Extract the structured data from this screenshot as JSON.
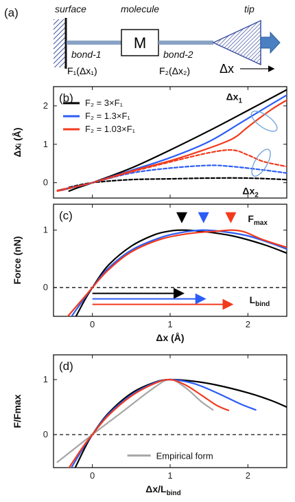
{
  "schematic": {
    "panel_label": "(a)",
    "surface_label": "surface",
    "molecule_label": "molecule",
    "tip_label": "tip",
    "bond1_label": "bond-1",
    "bond2_label": "bond-2",
    "f1_label": "F₁(Δx₁)",
    "f2_label": "F₂(Δx₂)",
    "m_label": "M",
    "dx_label": "Δx"
  },
  "colors": {
    "black": "#000000",
    "blue": "#2b5cf6",
    "red": "#f23a1c",
    "gray": "#a6a6a6",
    "ellipse": "#6aa0d8",
    "hatch": "#3b4fa0",
    "bond": "#8aa3c4"
  },
  "chart_data": [
    {
      "type": "line",
      "panel_label": "(b)",
      "ylabel": "Δxᵢ (Å)",
      "xlim": [
        -0.5,
        2.5
      ],
      "ylim": [
        -0.4,
        2.5
      ],
      "xticks": [
        0,
        1,
        2
      ],
      "yticks": [
        0,
        1,
        2
      ],
      "show_xtick_labels": false,
      "legend": [
        "F₂ = 3×F₁",
        "F₂ = 1.3×F₁",
        "F₂ = 1.03×F₁"
      ],
      "annotations": [
        "Δx₁",
        "Δx₂"
      ],
      "series": [
        {
          "name": "F₂ = 3×F₁",
          "color": "black",
          "dash": false,
          "x": [
            -0.3,
            -0.2,
            0,
            0.5,
            1,
            1.5,
            2,
            2.5
          ],
          "y": [
            -0.22,
            -0.14,
            0,
            0.38,
            0.85,
            1.35,
            1.88,
            2.42
          ]
        },
        {
          "name": "F₂ = 1.3×F₁",
          "color": "blue",
          "dash": false,
          "x": [
            -0.4,
            -0.2,
            0,
            0.5,
            1,
            1.5,
            1.9,
            2.2,
            2.5
          ],
          "y": [
            -0.2,
            -0.1,
            0,
            0.32,
            0.65,
            1.07,
            1.55,
            1.92,
            2.28
          ]
        },
        {
          "name": "F₂ = 1.03×F₁",
          "color": "red",
          "dash": false,
          "x": [
            -0.45,
            -0.2,
            0,
            0.5,
            1,
            1.4,
            1.7,
            1.85,
            2.0,
            2.3,
            2.5
          ],
          "y": [
            -0.22,
            -0.1,
            0,
            0.3,
            0.57,
            0.83,
            1.05,
            1.2,
            1.45,
            1.9,
            2.15
          ]
        },
        {
          "x": [
            -0.3,
            0,
            0.5,
            1,
            1.5,
            2,
            2.5
          ],
          "y": [
            -0.12,
            0,
            0.08,
            0.1,
            0.12,
            0.12,
            0.08
          ],
          "color": "black",
          "dash": true
        },
        {
          "x": [
            -0.4,
            0,
            0.5,
            1,
            1.5,
            1.8,
            2.2,
            2.5
          ],
          "y": [
            -0.18,
            0,
            0.25,
            0.38,
            0.45,
            0.42,
            0.33,
            0.25
          ],
          "color": "blue",
          "dash": true
        },
        {
          "x": [
            -0.45,
            0,
            0.5,
            1,
            1.5,
            1.8,
            2.0,
            2.2,
            2.5
          ],
          "y": [
            -0.2,
            0,
            0.28,
            0.54,
            0.78,
            0.85,
            0.72,
            0.55,
            0.42
          ],
          "color": "red",
          "dash": true
        }
      ]
    },
    {
      "type": "line",
      "panel_label": "(c)",
      "xlabel": "Δx (Å)",
      "ylabel": "Force (nN)",
      "xlim": [
        -0.5,
        2.5
      ],
      "ylim": [
        -0.5,
        1.45
      ],
      "xticks": [
        0,
        1,
        2
      ],
      "yticks": [
        0,
        1
      ],
      "fmax_label": "Fmax",
      "lbind_label": "Lbind",
      "fmax_x": [
        1.15,
        1.43,
        1.78
      ],
      "lbind_x": [
        1.15,
        1.43,
        1.78
      ],
      "series": [
        {
          "x": [
            -0.25,
            -0.1,
            0,
            0.2,
            0.5,
            0.8,
            1.0,
            1.15,
            1.4,
            1.8,
            2.2,
            2.5
          ],
          "y": [
            -0.6,
            -0.22,
            0,
            0.38,
            0.72,
            0.92,
            0.985,
            1.0,
            0.98,
            0.9,
            0.75,
            0.6
          ],
          "color": "black"
        },
        {
          "x": [
            -0.32,
            -0.1,
            0,
            0.2,
            0.5,
            0.9,
            1.2,
            1.43,
            1.7,
            2.0,
            2.3,
            2.5
          ],
          "y": [
            -0.6,
            -0.18,
            0,
            0.33,
            0.65,
            0.88,
            0.97,
            1.0,
            0.97,
            0.9,
            0.77,
            0.67
          ],
          "color": "blue"
        },
        {
          "x": [
            -0.38,
            -0.1,
            0,
            0.2,
            0.5,
            0.9,
            1.3,
            1.6,
            1.78,
            1.95,
            2.2,
            2.5
          ],
          "y": [
            -0.6,
            -0.16,
            0,
            0.3,
            0.62,
            0.85,
            0.95,
            0.98,
            1.0,
            0.97,
            0.83,
            0.7
          ],
          "color": "red"
        }
      ]
    },
    {
      "type": "line",
      "panel_label": "(d)",
      "xlabel": "Δx/Lbind",
      "ylabel": "F/Fmax",
      "xlim": [
        -0.5,
        2.5
      ],
      "ylim": [
        -0.6,
        1.45
      ],
      "xticks": [
        0,
        1,
        2
      ],
      "yticks": [
        0,
        1
      ],
      "legend": [
        "Empirical form"
      ],
      "series": [
        {
          "name": "Empirical form",
          "x": [
            -0.45,
            0,
            0.4,
            0.8,
            1.0,
            1.2,
            1.4,
            1.55
          ],
          "y": [
            -0.5,
            0,
            0.43,
            0.86,
            1.0,
            0.85,
            0.6,
            0.45
          ],
          "color": "gray"
        },
        {
          "x": [
            -0.22,
            -0.1,
            0,
            0.2,
            0.5,
            0.8,
            1.0,
            1.3,
            1.6,
            2.0,
            2.3,
            2.5
          ],
          "y": [
            -0.6,
            -0.25,
            0,
            0.38,
            0.75,
            0.95,
            1.0,
            0.97,
            0.9,
            0.76,
            0.62,
            0.5
          ],
          "color": "black"
        },
        {
          "x": [
            -0.27,
            -0.1,
            0,
            0.2,
            0.5,
            0.8,
            1.0,
            1.3,
            1.6,
            1.9,
            2.1
          ],
          "y": [
            -0.6,
            -0.2,
            0,
            0.36,
            0.72,
            0.94,
            1.0,
            0.93,
            0.76,
            0.56,
            0.45
          ],
          "color": "blue"
        },
        {
          "x": [
            -0.3,
            -0.1,
            0,
            0.2,
            0.5,
            0.8,
            1.0,
            1.2,
            1.4,
            1.6,
            1.75
          ],
          "y": [
            -0.6,
            -0.18,
            0,
            0.34,
            0.7,
            0.93,
            1.0,
            0.9,
            0.72,
            0.53,
            0.44
          ],
          "color": "red"
        }
      ]
    }
  ]
}
